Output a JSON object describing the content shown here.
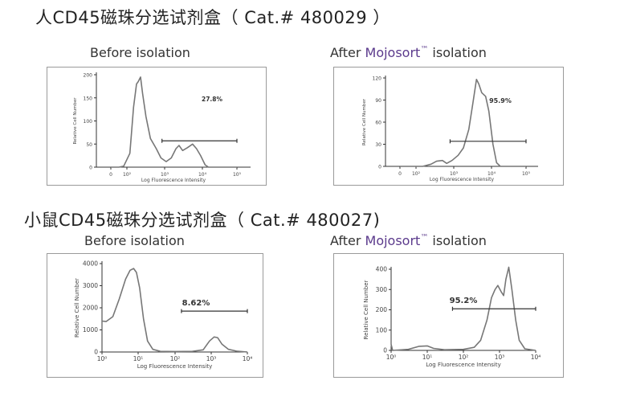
{
  "titles": {
    "human": "人CD45磁珠分选试剂盒（ Cat.# 480029 ）",
    "mouse": "小鼠CD45磁珠分选试剂盒（ Cat.# 480027)"
  },
  "labels": {
    "before": "Before isolation",
    "after_prefix": "After ",
    "brand": "Mojosort",
    "tm": "™",
    "after_suffix": " isolation"
  },
  "colors": {
    "brand": "#5b3a8c",
    "curve": "#777777",
    "gate": "#333333"
  },
  "chart_data": [
    {
      "type": "line",
      "id": "human-before",
      "xlabel": "Log Fluorescence Intensity",
      "ylabel": "Relative Cell Number",
      "xscale": "biexponential",
      "xticks": [
        0,
        100,
        1000,
        10000,
        100000
      ],
      "xtick_labels": [
        "0",
        "10²",
        "10³",
        "10⁴",
        "10⁵"
      ],
      "yticks": [
        0,
        50,
        100,
        150,
        200
      ],
      "ylim": [
        0,
        200
      ],
      "x": [
        0,
        50,
        80,
        120,
        150,
        180,
        200,
        230,
        260,
        320,
        420,
        600,
        800,
        1100,
        1500,
        2000,
        2400,
        3000,
        4000,
        5500,
        7000,
        9000,
        12000,
        15000,
        100000
      ],
      "y": [
        0,
        0,
        2,
        30,
        130,
        180,
        185,
        195,
        160,
        110,
        62,
        40,
        20,
        12,
        20,
        40,
        47,
        36,
        42,
        50,
        40,
        25,
        5,
        0,
        0
      ],
      "gate": {
        "from": 850,
        "to": 100000,
        "level": 57,
        "label": "27.8%"
      }
    },
    {
      "type": "line",
      "id": "human-after",
      "xlabel": "Log Fluorescence Intensity",
      "ylabel": "Relative Cell Number",
      "xscale": "biexponential",
      "xticks": [
        0,
        100,
        1000,
        10000,
        100000
      ],
      "xtick_labels": [
        "0",
        "10²",
        "10³",
        "10⁴",
        "10⁵"
      ],
      "yticks": [
        0,
        30,
        60,
        90,
        120
      ],
      "ylim": [
        0,
        120
      ],
      "x": [
        0,
        150,
        250,
        350,
        500,
        650,
        900,
        1300,
        1800,
        2500,
        3200,
        4000,
        4600,
        5500,
        7000,
        8500,
        11000,
        14000,
        18000,
        100000
      ],
      "y": [
        0,
        0,
        3,
        7,
        8,
        4,
        8,
        15,
        25,
        50,
        85,
        118,
        112,
        100,
        95,
        75,
        30,
        5,
        0,
        0
      ],
      "gate": {
        "from": 800,
        "to": 100000,
        "level": 34,
        "label": "95.9%"
      }
    },
    {
      "type": "line",
      "id": "mouse-before",
      "xlabel": "Log Fluorescence Intensity",
      "ylabel": "Relative Cell Number",
      "xscale": "log",
      "xticks": [
        1,
        10,
        100,
        1000,
        10000
      ],
      "xtick_labels": [
        "10⁰",
        "10¹",
        "10²",
        "10³",
        "10⁴"
      ],
      "yticks": [
        0,
        1000,
        2000,
        3000,
        4000
      ],
      "ylim": [
        0,
        4000
      ],
      "x": [
        1,
        1.3,
        2,
        3,
        4.5,
        6,
        7.5,
        9,
        11,
        14,
        18,
        25,
        40,
        100,
        300,
        600,
        900,
        1200,
        1500,
        2000,
        3000,
        5000,
        10000
      ],
      "y": [
        1400,
        1380,
        1600,
        2400,
        3300,
        3700,
        3780,
        3600,
        2900,
        1500,
        500,
        120,
        30,
        20,
        30,
        100,
        500,
        680,
        650,
        350,
        120,
        40,
        0
      ],
      "gate": {
        "from": 150,
        "to": 10000,
        "level": 1850,
        "label": "8.62%"
      }
    },
    {
      "type": "line",
      "id": "mouse-after",
      "xlabel": "Log Fluorescence Intensity",
      "ylabel": "Relative Cell Number",
      "xscale": "log",
      "xticks": [
        1,
        10,
        100,
        1000,
        10000
      ],
      "xtick_labels": [
        "10⁰",
        "10¹",
        "10²",
        "10³",
        "10⁴"
      ],
      "yticks": [
        0,
        100,
        200,
        300,
        400
      ],
      "ylim": [
        0,
        400
      ],
      "x": [
        1,
        1.1,
        3,
        6,
        10,
        15,
        30,
        100,
        200,
        300,
        450,
        600,
        750,
        900,
        1100,
        1300,
        1500,
        1800,
        2200,
        2800,
        3500,
        5000,
        10000
      ],
      "y": [
        30,
        0,
        5,
        20,
        22,
        10,
        3,
        5,
        15,
        50,
        150,
        260,
        300,
        320,
        290,
        270,
        350,
        410,
        300,
        150,
        50,
        8,
        0
      ],
      "gate": {
        "from": 50,
        "to": 10000,
        "level": 205,
        "label": "95.2%"
      }
    }
  ]
}
